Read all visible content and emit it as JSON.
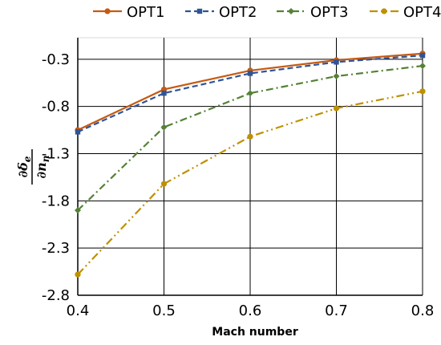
{
  "chart_data": {
    "type": "line",
    "title": "",
    "xlabel": "Mach number",
    "ylabel": {
      "numerator": "∂δ",
      "numerator_sub": "e",
      "denominator": "∂n",
      "denominator_sub": "n"
    },
    "x": [
      0.4,
      0.5,
      0.6,
      0.7,
      0.8
    ],
    "xticks": [
      "0.4",
      "0.5",
      "0.6",
      "0.7",
      "0.8"
    ],
    "yticks": [
      "-0.3",
      "-0.8",
      "-1.3",
      "-1.8",
      "-2.3",
      "-2.8"
    ],
    "xlim": [
      0.4,
      0.8
    ],
    "ylim": [
      -2.8,
      0.03
    ],
    "grid": true,
    "legend_position": "top",
    "series": [
      {
        "name": "OPT1",
        "color": "#c55a11",
        "dash": "solid",
        "marker": "circle",
        "values": [
          -1.05,
          -0.62,
          -0.42,
          -0.31,
          -0.24
        ]
      },
      {
        "name": "OPT2",
        "color": "#2f5597",
        "dash": "dash",
        "marker": "square",
        "values": [
          -1.07,
          -0.66,
          -0.45,
          -0.33,
          -0.26
        ]
      },
      {
        "name": "OPT3",
        "color": "#548235",
        "dash": "dashdot",
        "marker": "diamond",
        "values": [
          -1.9,
          -1.02,
          -0.66,
          -0.48,
          -0.37
        ]
      },
      {
        "name": "OPT4",
        "color": "#bf9000",
        "dash": "dashdotdot",
        "marker": "circle",
        "values": [
          -2.58,
          -1.62,
          -1.12,
          -0.82,
          -0.64
        ]
      }
    ]
  }
}
